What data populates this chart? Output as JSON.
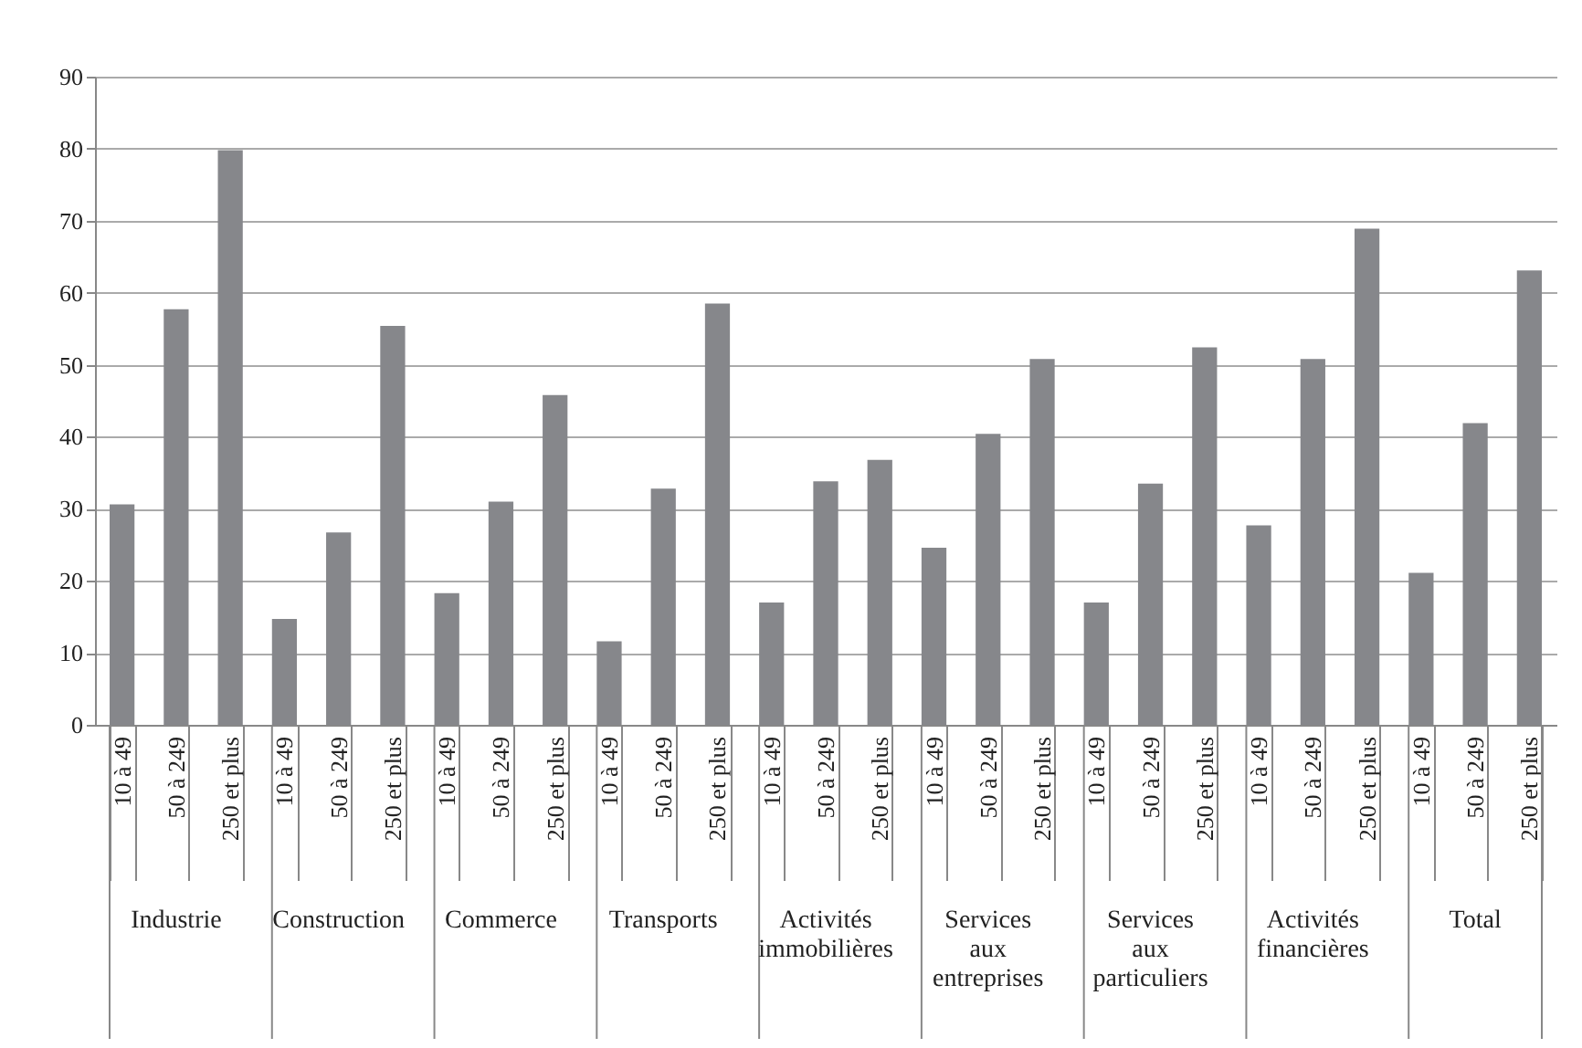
{
  "chart_data": {
    "type": "bar",
    "categories": [
      "10 à 49",
      "50 à 249",
      "250 et plus",
      "10 à 49",
      "50 à 249",
      "250 et plus",
      "10 à 49",
      "50 à 249",
      "250 et plus",
      "10 à 49",
      "50 à 249",
      "250 et plus",
      "10 à 49",
      "50 à 249",
      "250 et plus",
      "10 à 49",
      "50 à 249",
      "250 et plus",
      "10 à 49",
      "50 à 249",
      "250 et plus",
      "10 à 49",
      "50 à 249",
      "250 et plus",
      "10 à 49",
      "50 à 249",
      "250 et plus"
    ],
    "values": [
      30.6,
      57.7,
      79.8,
      14.7,
      26.7,
      55.4,
      18.3,
      31.0,
      45.8,
      11.6,
      32.8,
      58.5,
      17.0,
      33.8,
      36.8,
      24.6,
      40.4,
      50.8,
      17.0,
      33.5,
      52.4,
      27.7,
      50.8,
      68.9,
      21.1,
      41.9,
      63.1
    ],
    "color": "#86878b",
    "annotations": [
      "Industrie",
      "Construction",
      "Commerce",
      "Transports",
      "Activités immobilières",
      "Services aux entreprises",
      "Services aux particuliers",
      "Activités financières",
      "Total"
    ],
    "ylim": [
      0,
      90
    ],
    "yticks": [
      0,
      10,
      20,
      30,
      40,
      50,
      60,
      70,
      80,
      90
    ],
    "grid": "y"
  }
}
